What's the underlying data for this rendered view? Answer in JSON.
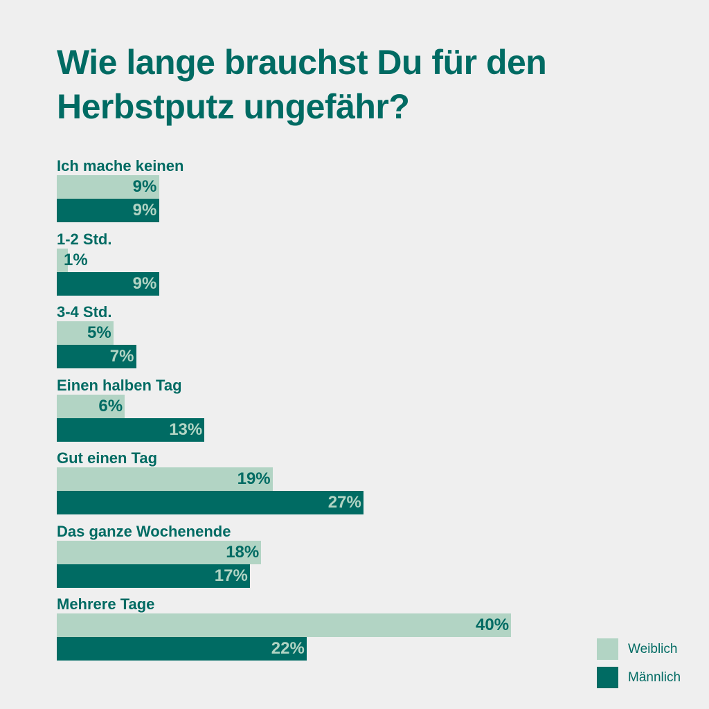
{
  "chart_data": {
    "type": "bar",
    "orientation": "horizontal",
    "title": "Wie lange brauchst Du für den Herbstputz ungefähr?",
    "categories": [
      "Ich mache keinen",
      "1-2 Std.",
      "3-4 Std.",
      "Einen halben Tag",
      "Gut einen Tag",
      "Das ganze Wochenende",
      "Mehrere Tage"
    ],
    "series": [
      {
        "name": "Weiblich",
        "color": "#b2d4c4",
        "values": [
          9,
          1,
          5,
          6,
          19,
          18,
          40
        ]
      },
      {
        "name": "Männlich",
        "color": "#006b63",
        "values": [
          9,
          9,
          7,
          13,
          27,
          17,
          22
        ]
      }
    ],
    "unit": "%",
    "legend": "bottom-right",
    "grid": false
  }
}
